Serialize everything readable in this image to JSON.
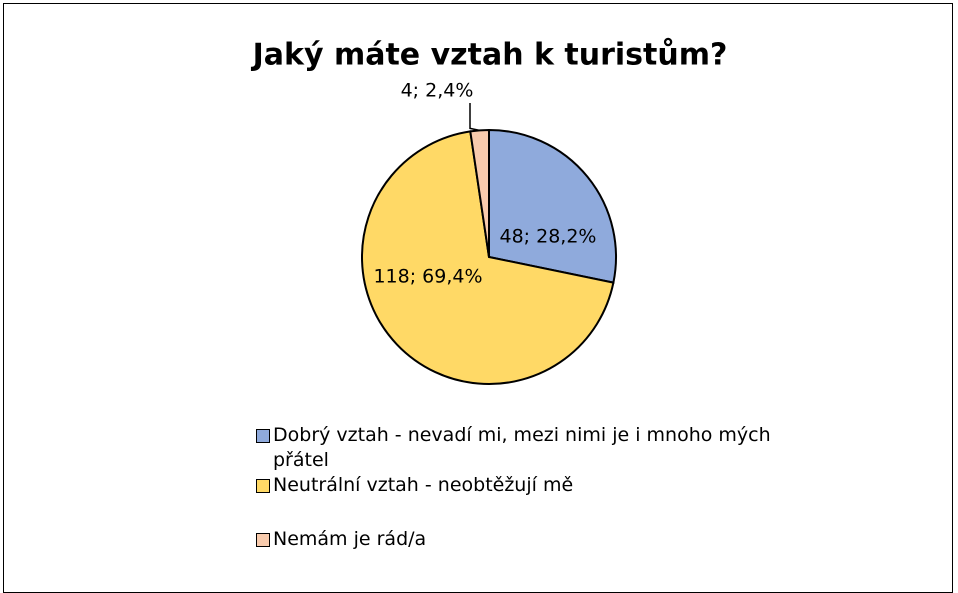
{
  "chart_data": {
    "type": "pie",
    "title": "Jaký máte vztah k turistům?",
    "categories": [
      "Dobrý vztah - nevadí mi, mezi nimi je i mnoho mých přátel",
      "Neutrální vztah - neobtěžují mě",
      "Nemám je rád/a"
    ],
    "values": [
      48,
      118,
      4
    ],
    "value_labels": [
      "48; 28,2%",
      "118; 69,4%",
      "4; 2,4%"
    ],
    "colors": [
      "#8faadc",
      "#ffd966",
      "#f8cbad"
    ],
    "legend": "bottom"
  }
}
